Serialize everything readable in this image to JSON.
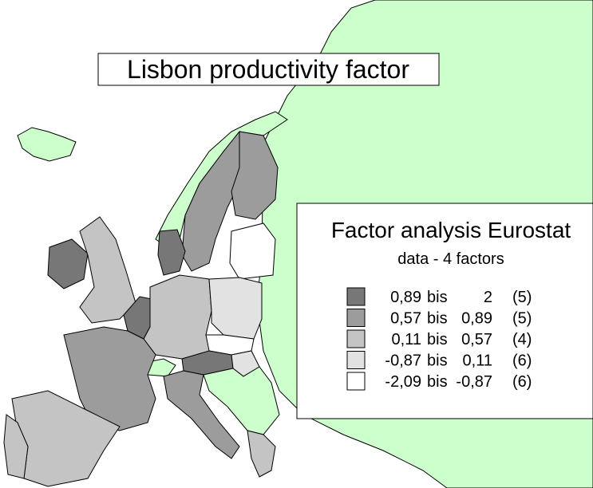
{
  "title": "Lisbon productivity factor",
  "legend": {
    "title": "Factor analysis Eurostat",
    "subtitle": "data - 4 factors",
    "items": [
      {
        "color": "#777777",
        "from": "0,89",
        "bis": "bis",
        "to": "2",
        "count": "(5)"
      },
      {
        "color": "#9c9c9c",
        "from": "0,57",
        "bis": "bis",
        "to": "0,89",
        "count": "(5)"
      },
      {
        "color": "#c4c4c4",
        "from": "0,11",
        "bis": "bis",
        "to": "0,57",
        "count": "(4)"
      },
      {
        "color": "#e2e2e2",
        "from": "-0,87",
        "bis": "bis",
        "to": "0,11",
        "count": "(6)"
      },
      {
        "color": "#ffffff",
        "from": "-2,09",
        "bis": "bis",
        "to": "-0,87",
        "count": "(6)"
      }
    ]
  }
}
